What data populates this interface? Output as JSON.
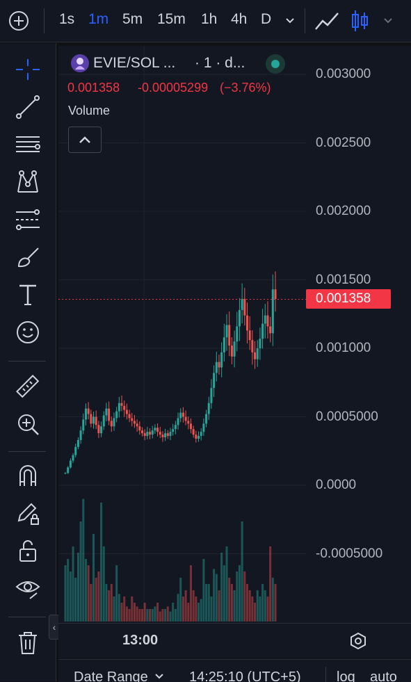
{
  "topbar": {
    "add_icon": "plus-circle-icon",
    "timeframes": [
      {
        "label": "1s",
        "active": false
      },
      {
        "label": "1m",
        "active": true
      },
      {
        "label": "5m",
        "active": false
      },
      {
        "label": "15m",
        "active": false
      },
      {
        "label": "1h",
        "active": false
      },
      {
        "label": "4h",
        "active": false
      },
      {
        "label": "D",
        "active": false
      }
    ],
    "timeframe_dropdown_icon": "chevron-down-icon",
    "chart_type_icons": [
      "line-chart-icon",
      "candlestick-icon"
    ],
    "chart_type_dropdown_icon": "chevron-down-icon"
  },
  "sidebar": {
    "tools": [
      "crosshair-icon",
      "trend-line-icon",
      "horizontal-lines-icon",
      "pattern-icon",
      "fib-icon",
      "brush-icon",
      "text-icon",
      "emoji-icon",
      "ruler-icon",
      "zoom-in-icon",
      "magnet-icon",
      "lock-drawing-icon",
      "unlock-icon",
      "eye-icon",
      "trash-icon"
    ],
    "collapse_icon": "chevron-left-icon"
  },
  "legend": {
    "symbol": "EVIE/SOL ...",
    "interval": "· 1 · d...",
    "status_color": "#26a69a",
    "price": "0.001358",
    "change": "-0.00005299",
    "change_pct": "(−3.76%)",
    "negative_color": "#f23645",
    "volume_label": "Volume"
  },
  "y_axis": {
    "ticks": [
      "0.003000",
      "0.002500",
      "0.002000",
      "0.001500",
      "0.001000",
      "0.0005000",
      "0.0000",
      "-0.0005000"
    ],
    "current_price_label": "0.001358",
    "current_price": 0.001358
  },
  "time_axis": {
    "label": "13:00",
    "settings_icon": "settings-icon"
  },
  "footer": {
    "date_range": "Date Range",
    "time": "14:25:10 (UTC+5)",
    "log": "log",
    "auto": "auto"
  },
  "chart_data": {
    "type": "candlestick",
    "up_color": "#26a69a",
    "down_color": "#ef5350",
    "ylim": [
      -0.0005,
      0.003
    ],
    "xlabel": "",
    "ylabel": "",
    "price_approx": [
      9e-05,
      0.00013,
      0.00018,
      0.00022,
      0.00028,
      0.00033,
      0.0004,
      0.00048,
      0.00056,
      0.00052,
      0.00045,
      0.0005,
      0.00044,
      0.00038,
      0.00043,
      0.00051,
      0.00056,
      0.00047,
      0.00043,
      0.00049,
      0.00054,
      0.0006,
      0.00058,
      0.00055,
      0.00052,
      0.00049,
      0.00047,
      0.00045,
      0.00043,
      0.0004,
      0.00038,
      0.00036,
      0.00039,
      0.00037,
      0.0004,
      0.00042,
      0.00039,
      0.00037,
      0.00035,
      0.00038,
      0.00036,
      0.00039,
      0.00041,
      0.00044,
      0.00049,
      0.00053,
      0.0005,
      0.00047,
      0.00045,
      0.00041,
      0.00037,
      0.00034,
      0.00036,
      0.00039,
      0.00045,
      0.00052,
      0.0006,
      0.00071,
      0.00082,
      0.0009,
      0.00086,
      0.00097,
      0.00108,
      0.00117,
      0.00102,
      0.00094,
      0.00105,
      0.00116,
      0.00128,
      0.00136,
      0.00124,
      0.00113,
      0.00106,
      0.00097,
      0.00092,
      0.001,
      0.00107,
      0.00118,
      0.00124,
      0.00116,
      0.00111,
      0.00143,
      0.00136
    ],
    "volume_approx": [
      0.45,
      0.5,
      0.4,
      0.6,
      0.35,
      0.55,
      0.8,
      0.98,
      0.5,
      0.45,
      0.3,
      0.7,
      0.35,
      0.4,
      0.95,
      0.6,
      0.3,
      0.25,
      0.3,
      0.2,
      0.45,
      0.22,
      0.15,
      0.2,
      0.12,
      0.1,
      0.2,
      0.15,
      0.12,
      0.1,
      0.1,
      0.15,
      0.1,
      0.1,
      0.1,
      0.12,
      0.15,
      0.08,
      0.1,
      0.1,
      0.12,
      0.08,
      0.15,
      0.1,
      0.22,
      0.35,
      0.2,
      0.25,
      0.15,
      0.45,
      0.25,
      0.2,
      0.15,
      0.18,
      0.5,
      0.3,
      0.3,
      0.2,
      0.42,
      0.38,
      0.25,
      0.55,
      0.45,
      0.6,
      0.35,
      0.3,
      0.25,
      0.4,
      0.45,
      0.8,
      0.4,
      0.3,
      0.25,
      0.2,
      0.15,
      0.25,
      0.2,
      0.3,
      0.25,
      0.2,
      0.6,
      0.35,
      0.3
    ]
  }
}
